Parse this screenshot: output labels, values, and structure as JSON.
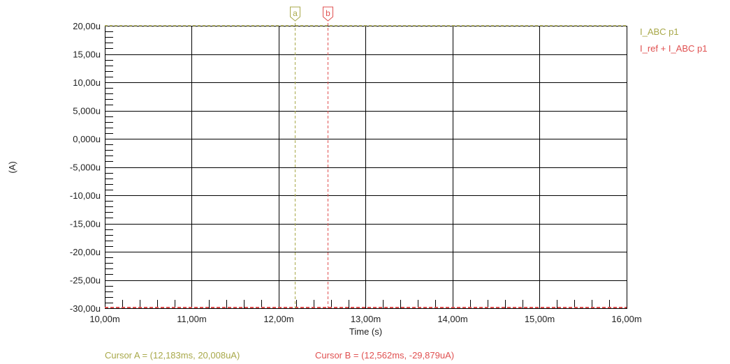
{
  "chart_data": {
    "type": "line",
    "xlabel": "Time (s)",
    "ylabel": "(A)",
    "xlim": [
      0.01,
      0.016
    ],
    "ylim": [
      -3e-05,
      2e-05
    ],
    "x_ticks": [
      {
        "value": 0.01,
        "label": "10,00m"
      },
      {
        "value": 0.011,
        "label": "11,00m"
      },
      {
        "value": 0.012,
        "label": "12,00m"
      },
      {
        "value": 0.013,
        "label": "13,00m"
      },
      {
        "value": 0.014,
        "label": "14,00m"
      },
      {
        "value": 0.015,
        "label": "15,00m"
      },
      {
        "value": 0.016,
        "label": "16,00m"
      }
    ],
    "y_ticks": [
      {
        "value": 2e-05,
        "label": "20,00u"
      },
      {
        "value": 1.5e-05,
        "label": "15,00u"
      },
      {
        "value": 1e-05,
        "label": "10,00u"
      },
      {
        "value": 5e-06,
        "label": "5,000u"
      },
      {
        "value": 0,
        "label": "0,000u"
      },
      {
        "value": -5e-06,
        "label": "-5,000u"
      },
      {
        "value": -1e-05,
        "label": "-10,00u"
      },
      {
        "value": -1.5e-05,
        "label": "-15,00u"
      },
      {
        "value": -2e-05,
        "label": "-20,00u"
      },
      {
        "value": -2.5e-05,
        "label": "-25,00u"
      },
      {
        "value": -3e-05,
        "label": "-30,00u"
      }
    ],
    "y_minor_per_major": 4,
    "x_minor_per_major": 4,
    "grid": true,
    "legend_placement": "top-right, outside plot",
    "series": [
      {
        "name": "I_ABC p1",
        "color": "#a8a849",
        "x": [
          0.01,
          0.016
        ],
        "y": [
          2.0008e-05,
          2.0008e-05
        ]
      },
      {
        "name": "I_ref + I_ABC p1",
        "color": "#e05050",
        "x": [
          0.01,
          0.016
        ],
        "y": [
          -2.9879e-05,
          -2.9879e-05
        ]
      }
    ],
    "cursors": [
      {
        "id": "a",
        "x": 0.012183,
        "color": "#a8a849",
        "readout": "Cursor A = (12,183ms, 20,008uA)"
      },
      {
        "id": "b",
        "x": 0.012562,
        "color": "#e05050",
        "readout": "Cursor B = (12,562ms, -29,879uA)"
      }
    ]
  }
}
